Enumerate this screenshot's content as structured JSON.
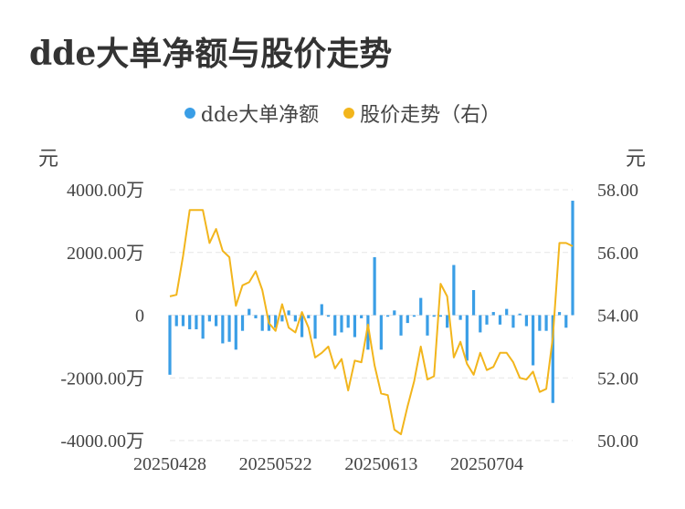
{
  "title": "dde大单净额与股价走势",
  "legend": [
    {
      "label": "dde大单净额",
      "color": "#3a9ee6"
    },
    {
      "label": "股价走势（右）",
      "color": "#f2b51c"
    }
  ],
  "units": {
    "left": "元",
    "right": "元"
  },
  "chart_data": {
    "type": "bar+line",
    "title": "dde大单净额与股价走势",
    "x_tick_labels": [
      "20250428",
      "20250522",
      "20250613",
      "20250704"
    ],
    "x_tick_index": [
      0,
      16,
      32,
      48
    ],
    "y_left": {
      "ticks": [
        "4000.00万",
        "2000.00万",
        "0",
        "-2000.00万",
        "-4000.00万"
      ],
      "range": [
        -4000,
        4000
      ],
      "unit": "万元"
    },
    "y_right": {
      "ticks": [
        "58.00",
        "56.00",
        "54.00",
        "52.00",
        "50.00"
      ],
      "range": [
        50,
        58
      ]
    },
    "grid": true,
    "legend_position": "top-center",
    "series": [
      {
        "name": "dde大单净额",
        "type": "bar",
        "axis": "left",
        "values": [
          -1900,
          -350,
          -350,
          -450,
          -450,
          -750,
          -200,
          -350,
          -900,
          -850,
          -1100,
          -500,
          200,
          -100,
          -500,
          -500,
          -400,
          -200,
          150,
          -200,
          -700,
          -100,
          -750,
          350,
          -50,
          -650,
          -550,
          -400,
          -700,
          -100,
          -1100,
          1850,
          -1100,
          -50,
          150,
          -650,
          -250,
          -50,
          550,
          -650,
          -50,
          -50,
          -400,
          1600,
          -150,
          -1450,
          800,
          -550,
          -300,
          100,
          -300,
          200,
          -400,
          50,
          -350,
          -1600,
          -500,
          -500,
          -2800,
          100,
          -400,
          3650
        ]
      },
      {
        "name": "股价走势（右）",
        "type": "line",
        "axis": "right",
        "values": [
          54.6,
          54.65,
          55.9,
          57.35,
          57.35,
          57.35,
          56.3,
          56.75,
          56.05,
          55.85,
          54.3,
          54.95,
          55.05,
          55.4,
          54.8,
          53.75,
          53.5,
          54.35,
          53.6,
          53.45,
          54.1,
          53.6,
          52.65,
          52.8,
          53.0,
          52.3,
          52.6,
          51.6,
          52.55,
          52.5,
          53.7,
          52.4,
          51.5,
          51.45,
          50.35,
          50.2,
          51.1,
          51.9,
          53.0,
          51.95,
          52.05,
          55.0,
          54.6,
          52.65,
          53.15,
          52.45,
          52.1,
          52.8,
          52.25,
          52.35,
          52.8,
          52.8,
          52.5,
          52.0,
          51.95,
          52.2,
          51.55,
          51.65,
          53.3,
          56.3,
          56.3,
          56.2
        ]
      }
    ]
  }
}
